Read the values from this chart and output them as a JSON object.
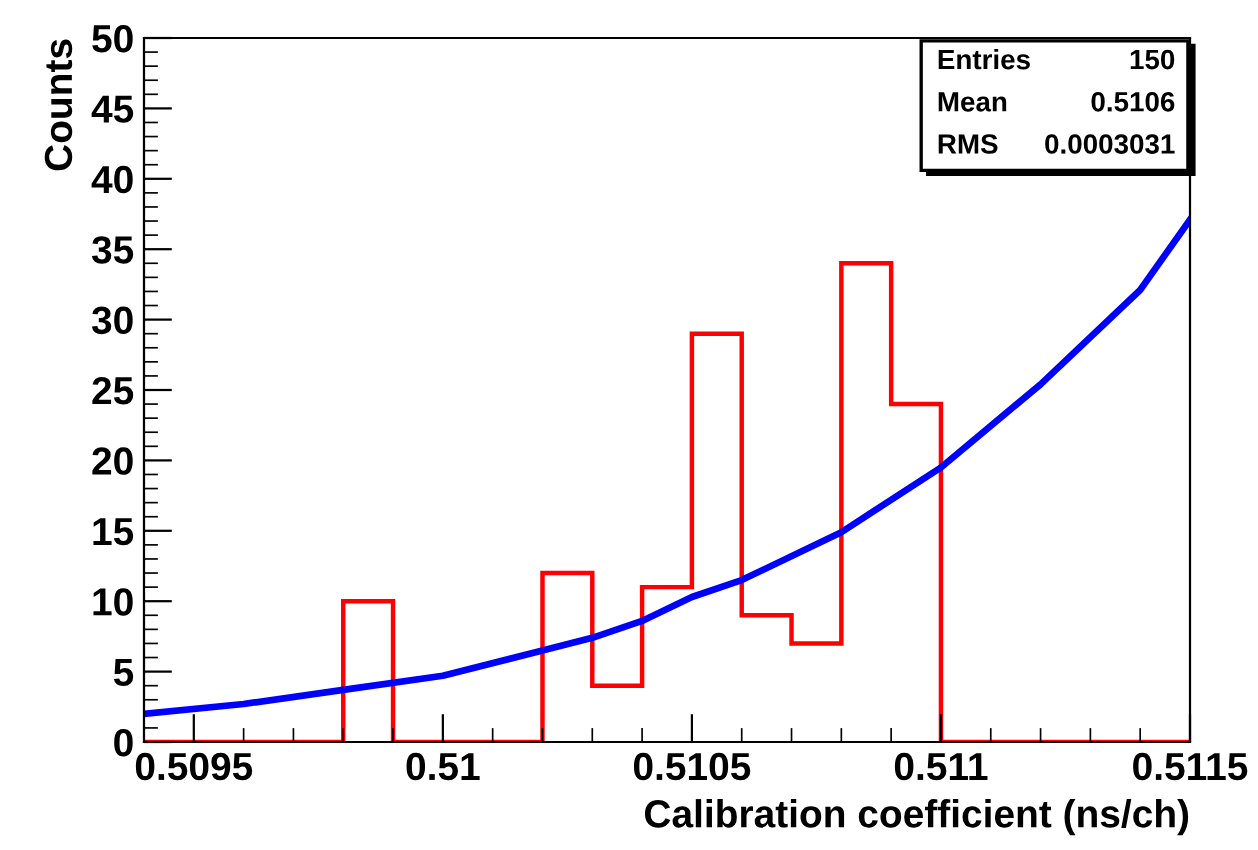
{
  "chart_data": {
    "type": "histogram",
    "xlabel": "Calibration coefficient (ns/ch)",
    "ylabel": "Counts",
    "bins": [
      0.5094,
      0.5095,
      0.5096,
      0.5097,
      0.5098,
      0.5099,
      0.51,
      0.5101,
      0.5102,
      0.5103,
      0.5104,
      0.5105,
      0.5106,
      0.5107,
      0.5108,
      0.5109,
      0.511,
      0.5111,
      0.5112,
      0.5113,
      0.5114,
      0.5115
    ],
    "series": [
      {
        "color": "#ff0000",
        "values": [
          0,
          0,
          0,
          0,
          10,
          0,
          0,
          0,
          12,
          4,
          11,
          29,
          9,
          7,
          34,
          24,
          0,
          0,
          0,
          0,
          0
        ]
      },
      {
        "type": "line",
        "color": "#0000ff",
        "x": [
          0.5094,
          0.5096,
          0.5098,
          0.51,
          0.5102,
          0.5103,
          0.5104,
          0.5105,
          0.5106,
          0.5108,
          0.511,
          0.5112,
          0.5114,
          0.5115
        ],
        "values": [
          2.0,
          2.7,
          3.7,
          4.7,
          6.5,
          7.4,
          8.6,
          10.3,
          11.5,
          14.9,
          19.5,
          25.4,
          32.1,
          37.1
        ]
      }
    ],
    "xlim": [
      0.5094,
      0.5115
    ],
    "xticks": [
      0.5095,
      0.51,
      0.5105,
      0.511,
      0.5115
    ],
    "ylim": [
      0,
      50
    ],
    "yticks": [
      0,
      5,
      10,
      15,
      20,
      25,
      30,
      35,
      40,
      45,
      50
    ],
    "annotations": [
      "Entries",
      "150",
      "Mean",
      "0.5106",
      "RMS",
      "0.0003031"
    ],
    "grid": false,
    "legend": false
  }
}
